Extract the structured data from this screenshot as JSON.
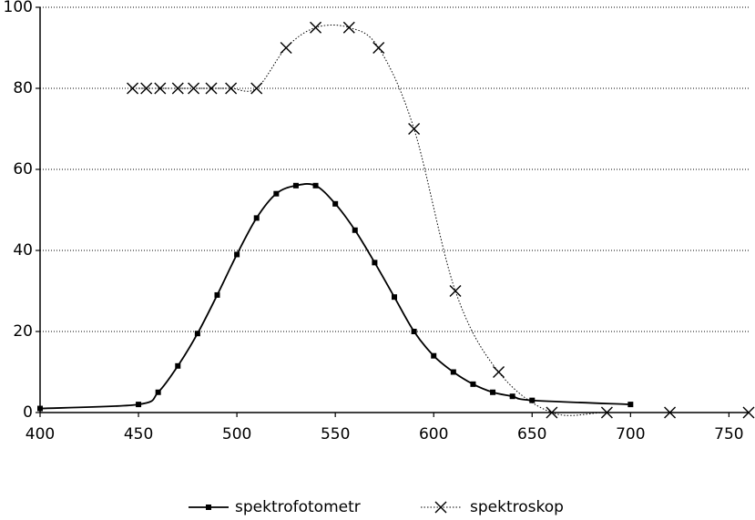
{
  "chart_data": {
    "type": "line",
    "title": "",
    "xlabel": "",
    "ylabel": "",
    "xlim": [
      400,
      760
    ],
    "ylim": [
      0,
      100
    ],
    "x_ticks": [
      400,
      450,
      500,
      550,
      600,
      650,
      700,
      750
    ],
    "y_ticks": [
      0,
      20,
      40,
      60,
      80,
      100
    ],
    "grid": "horizontal dotted",
    "legend_position": "bottom",
    "series": [
      {
        "name": "spektrofotometr",
        "line": "solid",
        "marker": "square",
        "x": [
          400,
          450,
          460,
          470,
          480,
          490,
          500,
          510,
          520,
          530,
          540,
          550,
          560,
          570,
          580,
          590,
          600,
          610,
          620,
          630,
          640,
          650,
          700
        ],
        "y": [
          1,
          2,
          5,
          11.5,
          19.5,
          29,
          39,
          48,
          54,
          56,
          56,
          51.5,
          45,
          37,
          28.5,
          20,
          14,
          10,
          7,
          5,
          4,
          3,
          2
        ]
      },
      {
        "name": "spektroskop",
        "line": "dotted",
        "marker": "x",
        "x": [
          447,
          454,
          461,
          470,
          478,
          487,
          497,
          510,
          525,
          540,
          557,
          572,
          590,
          611,
          633,
          660,
          688,
          720,
          760
        ],
        "y": [
          80,
          80,
          80,
          80,
          80,
          80,
          80,
          80,
          90,
          95,
          95,
          90,
          70,
          30,
          10,
          0,
          0,
          0,
          0
        ]
      }
    ]
  }
}
